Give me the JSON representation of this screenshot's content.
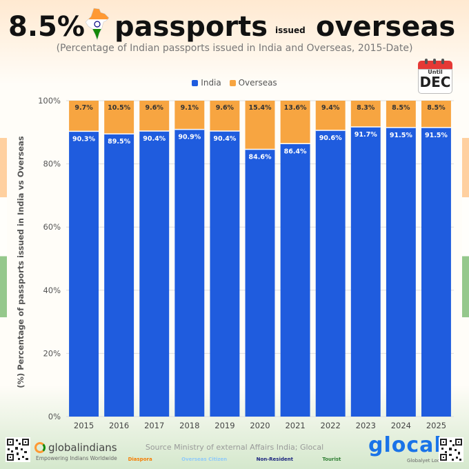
{
  "title": {
    "part1": "8.5%",
    "part2": "passports",
    "part3": "issued",
    "part4": "overseas"
  },
  "subtitle": "(Percentage of Indian passports issued in India and Overseas, 2015-Date)",
  "badge": {
    "until": "Until",
    "month": "DEC"
  },
  "colors": {
    "india": "#1f5cde",
    "overseas": "#f7a541",
    "grid": "#dddddd",
    "text_dark": "#333333"
  },
  "chart_data": {
    "type": "bar",
    "stacked": true,
    "ylabel": "(%) Percentage of passports issued in India vs Overseas",
    "xlabel": "",
    "ylim": [
      0,
      100
    ],
    "yticks": [
      "0%",
      "20%",
      "40%",
      "60%",
      "80%",
      "100%"
    ],
    "legend_position": "top",
    "categories": [
      "2015",
      "2016",
      "2017",
      "2018",
      "2019",
      "2020",
      "2021",
      "2022",
      "2023",
      "2024",
      "2025"
    ],
    "series": [
      {
        "name": "India",
        "values": [
          90.3,
          89.5,
          90.4,
          90.9,
          90.4,
          84.6,
          86.4,
          90.6,
          91.7,
          91.5,
          91.5
        ],
        "labels": [
          "90.3%",
          "89.5%",
          "90.4%",
          "90.9%",
          "90.4%",
          "84.6%",
          "86.4%",
          "90.6%",
          "91.7%",
          "91.5%",
          "91.5%"
        ]
      },
      {
        "name": "Overseas",
        "values": [
          9.7,
          10.5,
          9.6,
          9.1,
          9.6,
          15.4,
          13.6,
          9.4,
          8.3,
          8.5,
          8.5
        ],
        "labels": [
          "9.7%",
          "10.5%",
          "9.6%",
          "9.1%",
          "9.6%",
          "15.4%",
          "13.6%",
          "9.4%",
          "8.3%",
          "8.5%",
          "8.5%"
        ]
      }
    ]
  },
  "footer": {
    "brand_left": "globalindians",
    "brand_left_tag": "Empowering Indians Worldwide",
    "source": "Source Ministry of external Affairs India; Glocal",
    "categories": [
      {
        "label": "Diaspora",
        "color": "#f57c00"
      },
      {
        "label": "Overseas Citizen",
        "color": "#90caf9"
      },
      {
        "label": "Non-Resident",
        "color": "#1a237e"
      },
      {
        "label": "Tourist",
        "color": "#2e7d32"
      }
    ],
    "brand_right": "glocal",
    "brand_right_tag": "Globalyet Local"
  }
}
